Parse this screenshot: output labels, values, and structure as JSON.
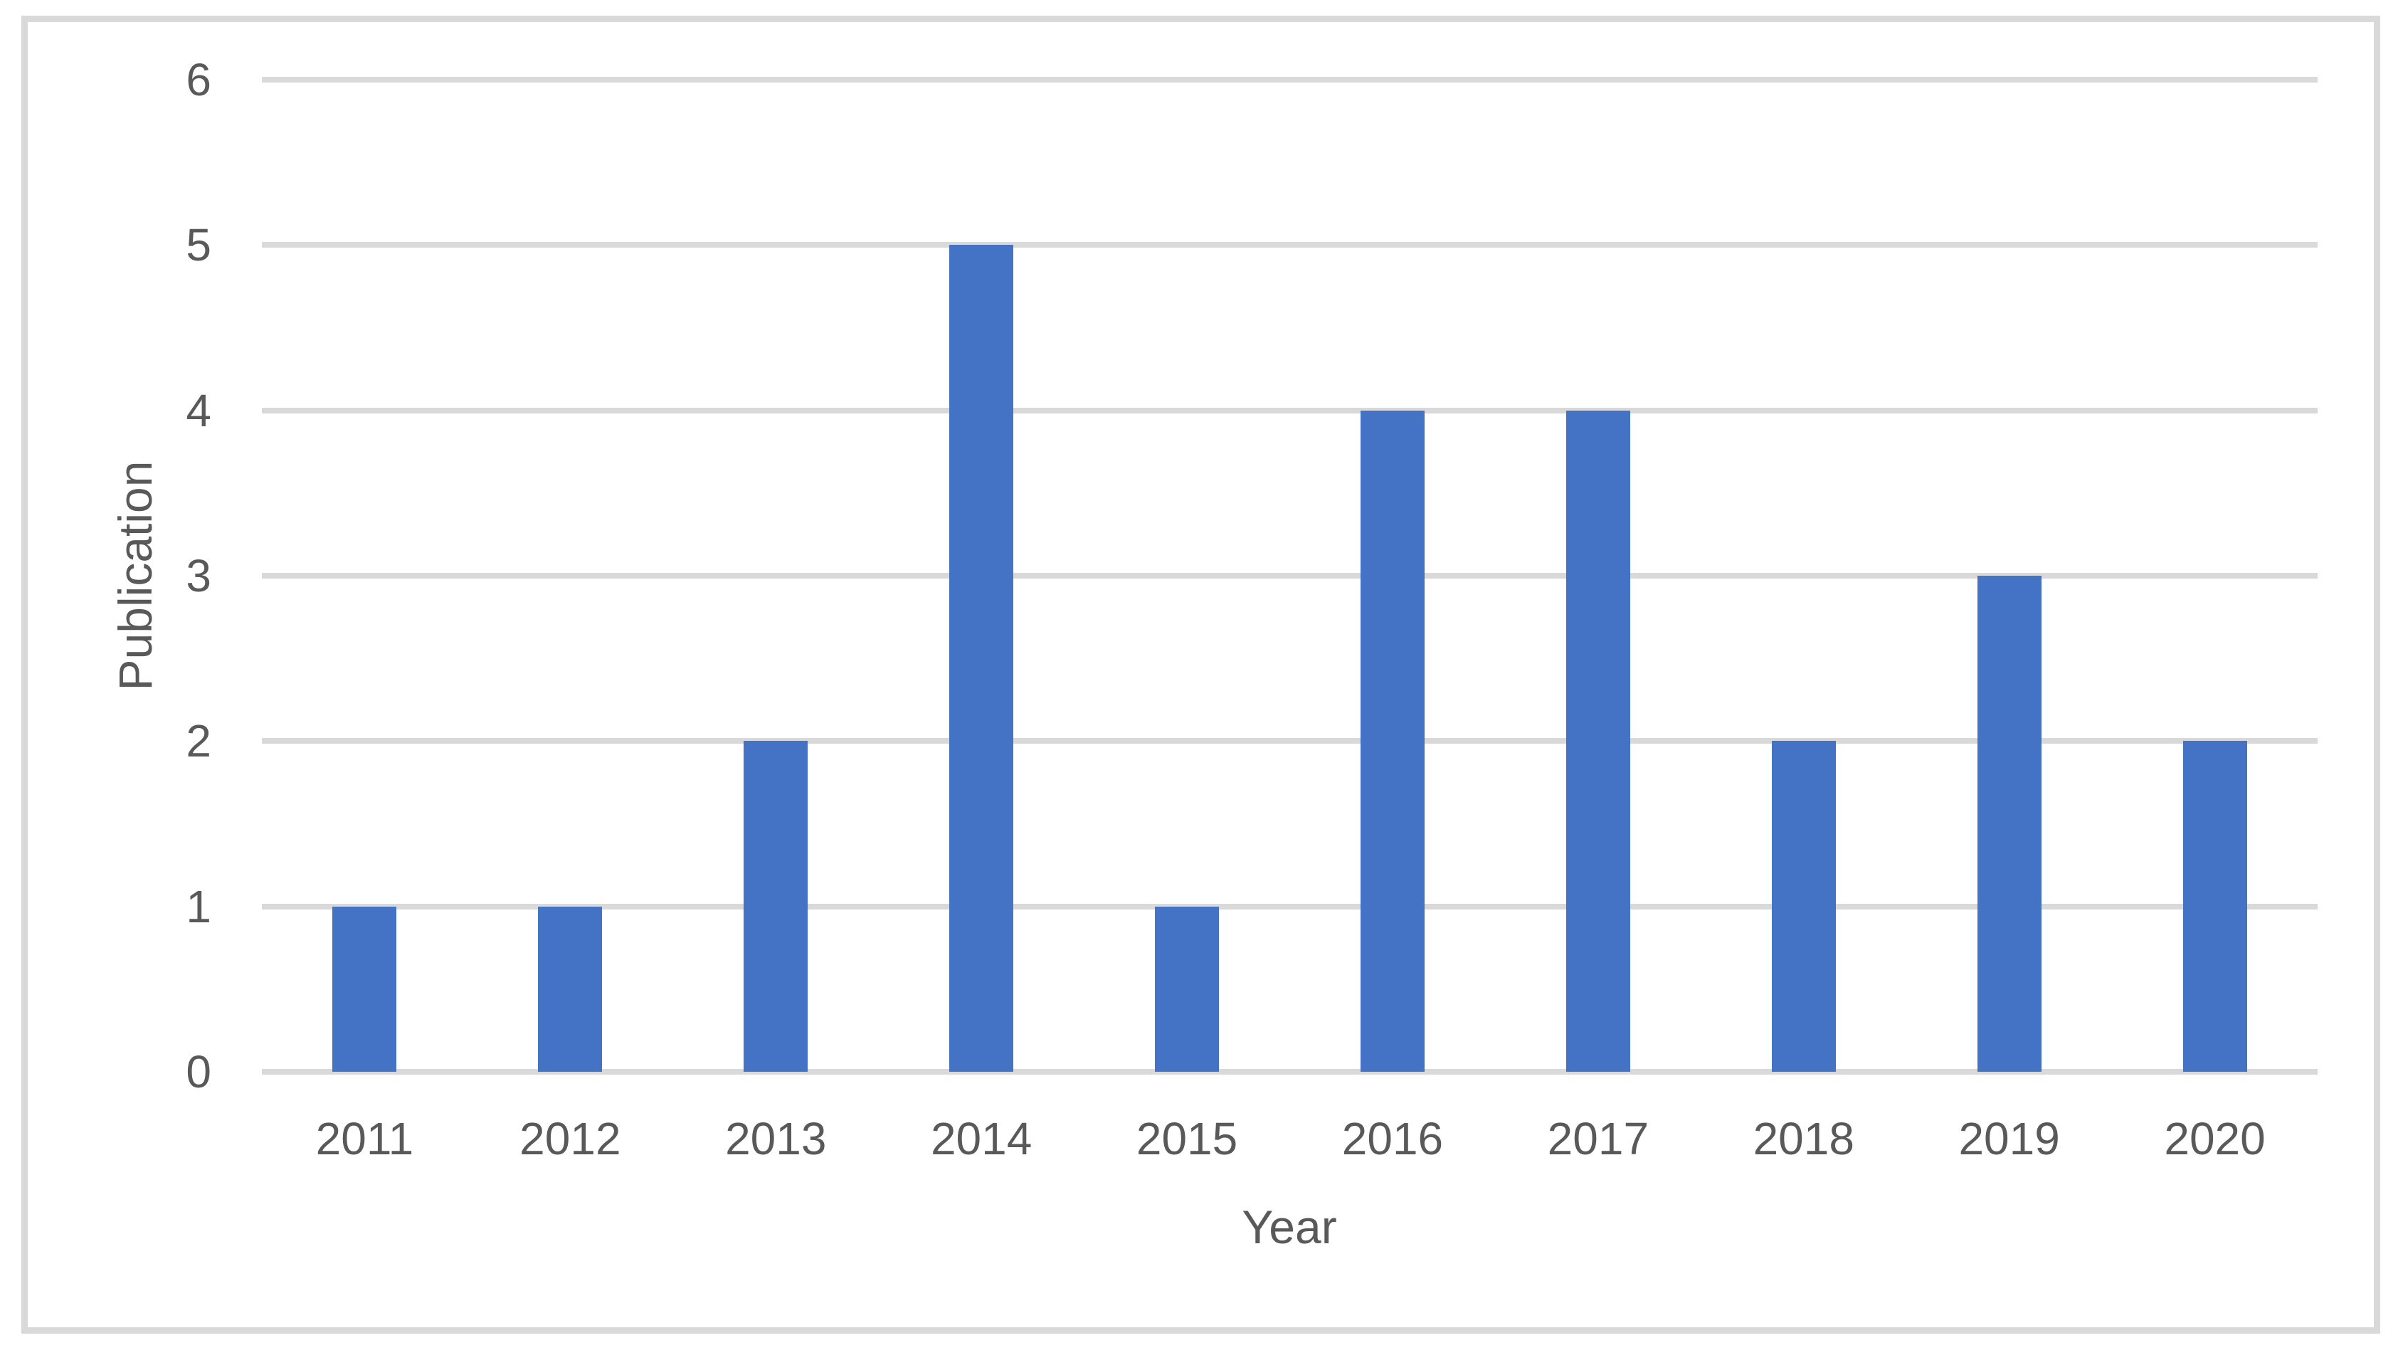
{
  "chart_data": {
    "type": "bar",
    "categories": [
      "2011",
      "2012",
      "2013",
      "2014",
      "2015",
      "2016",
      "2017",
      "2018",
      "2019",
      "2020"
    ],
    "values": [
      1,
      1,
      2,
      5,
      1,
      4,
      4,
      2,
      3,
      2
    ],
    "xlabel": "Year",
    "ylabel": "Publication",
    "ylim": [
      0,
      6
    ],
    "yticks": [
      0,
      1,
      2,
      3,
      4,
      5,
      6
    ],
    "grid": "horizontal",
    "legend_position": "none",
    "bar_color": "#4472C4",
    "gridline_color": "#D9D9D9",
    "frame_border_color": "#D9D9D9",
    "axis_text_color": "#595959",
    "background_color": "#FFFFFF"
  }
}
